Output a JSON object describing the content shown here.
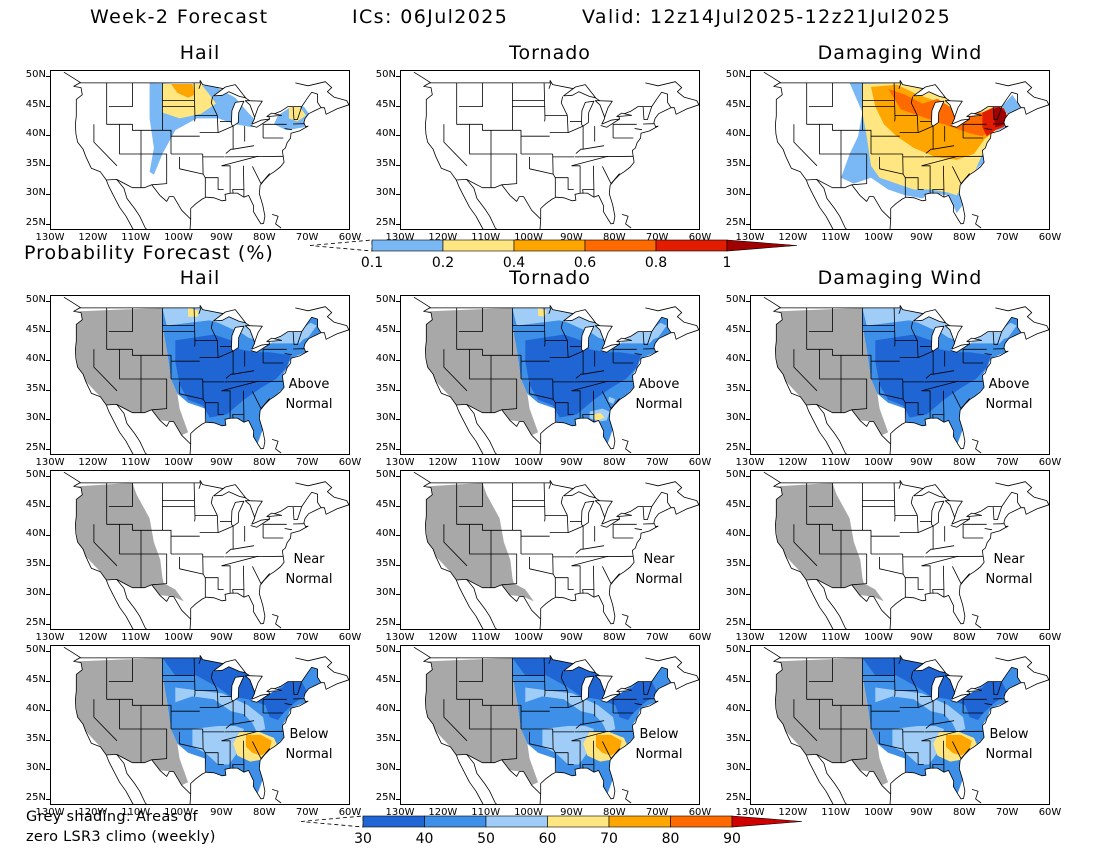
{
  "header": {
    "forecast": "Week-2 Forecast",
    "ics": "ICs: 06Jul2025",
    "valid": "Valid: 12z14Jul2025-12z21Jul2025"
  },
  "columns": [
    "Hail",
    "Tornado",
    "Damaging Wind"
  ],
  "probability_title": "Probability Forecast (%)",
  "lat_labels": [
    "50N",
    "45N",
    "40N",
    "35N",
    "30N",
    "25N"
  ],
  "lon_labels": [
    "130W",
    "120W",
    "110W",
    "100W",
    "90W",
    "80W",
    "70W",
    "60W"
  ],
  "categories": {
    "above": [
      "Above",
      "Normal"
    ],
    "near": [
      "Near",
      "Normal"
    ],
    "below": [
      "Below",
      "Normal"
    ]
  },
  "prob_legend": {
    "labels": [
      "0.1",
      "0.2",
      "0.4",
      "0.6",
      "0.8",
      "1"
    ],
    "colors": [
      "#7ab8f5",
      "#ffe680",
      "#ffa500",
      "#ff6a00",
      "#e21c00",
      "#a00000"
    ]
  },
  "pct_legend": {
    "labels": [
      "30",
      "40",
      "50",
      "60",
      "70",
      "80",
      "90"
    ],
    "colors": [
      "#1f66d4",
      "#3d8fe8",
      "#9fcdf7",
      "#ffe680",
      "#ffa500",
      "#ff6a00",
      "#d00000"
    ]
  },
  "note": [
    "Grey shading: Areas of",
    "zero LSR3 climo (weekly)"
  ],
  "colors": {
    "grey": "#a8a8a8",
    "dark_blue": "#1f66d4",
    "mid_blue": "#3d8fe8",
    "light_blue": "#9fcdf7",
    "yellow": "#ffe680",
    "orange": "#ffa500",
    "dark_orange": "#ff6a00",
    "red": "#d00000"
  }
}
